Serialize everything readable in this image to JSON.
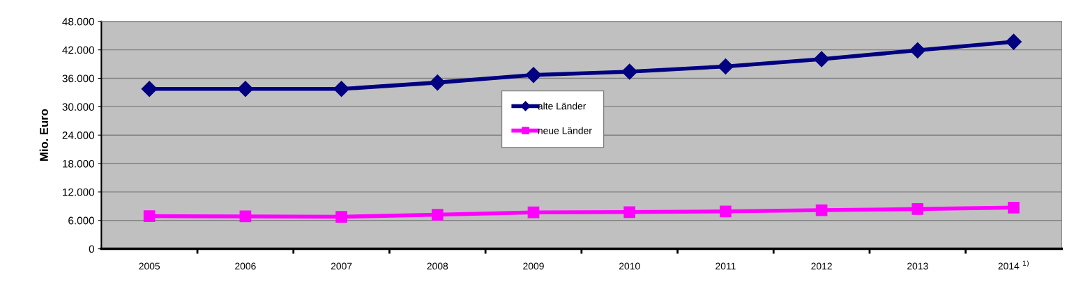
{
  "chart_data": {
    "type": "line",
    "ylabel": "Mio. Euro",
    "categories": [
      "2005",
      "2006",
      "2007",
      "2008",
      "2009",
      "2010",
      "2011",
      "2012",
      "2013",
      "2014 $^{1)}$"
    ],
    "series": [
      {
        "name": "alte Länder",
        "color": "#000080",
        "marker": "diamond",
        "values": [
          33750,
          33750,
          33750,
          35100,
          36700,
          37400,
          38500,
          40050,
          41900,
          43700
        ]
      },
      {
        "name": "neue Länder",
        "color": "#ff00ff",
        "marker": "square",
        "values": [
          6900,
          6850,
          6760,
          7200,
          7700,
          7750,
          7900,
          8150,
          8400,
          8700
        ]
      }
    ],
    "ylim": [
      0,
      48000
    ],
    "yticks": [
      {
        "value": 0,
        "label": "0"
      },
      {
        "value": 6000,
        "label": "6.000"
      },
      {
        "value": 12000,
        "label": "12.000"
      },
      {
        "value": 18000,
        "label": "18.000"
      },
      {
        "value": 24000,
        "label": "24.000"
      },
      {
        "value": 30000,
        "label": "30.000"
      },
      {
        "value": 36000,
        "label": "36.000"
      },
      {
        "value": 42000,
        "label": "42.000"
      },
      {
        "value": 48000,
        "label": "48.000"
      }
    ],
    "grid": "y",
    "legend": "center",
    "line_style": "solid"
  }
}
